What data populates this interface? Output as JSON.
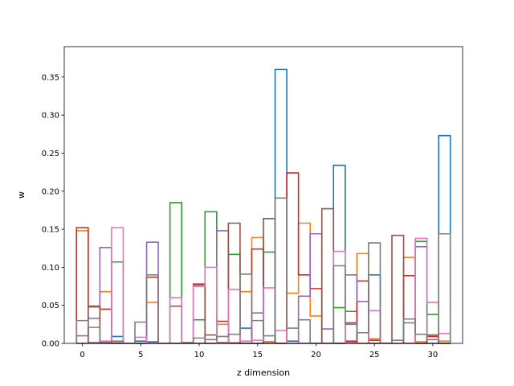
{
  "chart_data": {
    "type": "step-histogram",
    "title": "",
    "xlabel": "z dimension",
    "ylabel": "w",
    "xlim": [
      -1.55,
      32.55
    ],
    "ylim": [
      0,
      0.39
    ],
    "xticks": [
      0,
      5,
      10,
      15,
      20,
      25,
      30
    ],
    "yticks": [
      0.0,
      0.05,
      0.1,
      0.15,
      0.2,
      0.25,
      0.3,
      0.35
    ],
    "bins": [
      -0.5,
      0.5,
      1.5,
      2.5,
      3.5,
      4.5,
      5.5,
      6.5,
      7.5,
      8.5,
      9.5,
      10.5,
      11.5,
      12.5,
      13.5,
      14.5,
      15.5,
      16.5,
      17.5,
      18.5,
      19.5,
      20.5,
      21.5,
      22.5,
      23.5,
      24.5,
      25.5,
      26.5,
      27.5,
      28.5,
      29.5,
      30.5,
      31.5
    ],
    "grid": false,
    "legend": false,
    "series": [
      {
        "color": "#1f77b4",
        "values": [
          0.0,
          0.001,
          0.002,
          0.009,
          0.0,
          0.003,
          0.002,
          0.0,
          0.0,
          0.001,
          0.0,
          0.0,
          0.001,
          0.0,
          0.02,
          0.0,
          0.002,
          0.36,
          0.003,
          0.0,
          0.0,
          0.0,
          0.234,
          0.001,
          0.0,
          0.09,
          0.0,
          0.0,
          0.0,
          0.0,
          0.0,
          0.273
        ]
      },
      {
        "color": "#ff7f0e",
        "values": [
          0.148,
          0.0,
          0.068,
          0.001,
          0.0,
          0.0,
          0.054,
          0.0,
          0.0,
          0.0,
          0.0,
          0.0,
          0.025,
          0.001,
          0.068,
          0.139,
          0.002,
          0.0,
          0.066,
          0.158,
          0.036,
          0.0,
          0.0,
          0.0,
          0.118,
          0.006,
          0.0,
          0.0,
          0.113,
          0.002,
          0.0,
          0.003
        ]
      },
      {
        "color": "#2ca02c",
        "values": [
          0.0,
          0.0,
          0.0,
          0.107,
          0.0,
          0.0,
          0.0,
          0.0,
          0.185,
          0.0,
          0.031,
          0.173,
          0.0,
          0.117,
          0.0,
          0.0,
          0.12,
          0.0,
          0.0,
          0.0,
          0.0,
          0.0,
          0.047,
          0.042,
          0.0,
          0.0,
          0.0,
          0.0,
          0.0,
          0.134,
          0.038,
          0.0
        ]
      },
      {
        "color": "#d62728",
        "values": [
          0.152,
          0.048,
          0.045,
          0.0,
          0.0,
          0.0,
          0.087,
          0.0,
          0.0,
          0.0,
          0.078,
          0.0,
          0.029,
          0.0,
          0.0,
          0.124,
          0.0,
          0.0,
          0.224,
          0.09,
          0.072,
          0.0,
          0.0,
          0.003,
          0.082,
          0.004,
          0.0,
          0.0,
          0.089,
          0.0,
          0.009,
          0.0
        ]
      },
      {
        "color": "#9467bd",
        "values": [
          0.01,
          0.033,
          0.126,
          0.0,
          0.0,
          0.0,
          0.133,
          0.0,
          0.0,
          0.0,
          0.0,
          0.0,
          0.148,
          0.0,
          0.0,
          0.04,
          0.0,
          0.0,
          0.0,
          0.062,
          0.144,
          0.019,
          0.0,
          0.09,
          0.055,
          0.0,
          0.0,
          0.0,
          0.027,
          0.127,
          0.0,
          0.0
        ]
      },
      {
        "color": "#8c564b",
        "values": [
          0.0,
          0.049,
          0.0,
          0.0,
          0.0,
          0.0,
          0.0,
          0.0,
          0.049,
          0.0,
          0.076,
          0.011,
          0.0,
          0.158,
          0.0,
          0.0,
          0.164,
          0.0,
          0.0,
          0.0,
          0.0,
          0.177,
          0.0,
          0.027,
          0.0,
          0.0,
          0.0,
          0.142,
          0.0,
          0.0,
          0.011,
          0.0
        ]
      },
      {
        "color": "#e377c2",
        "values": [
          0.0,
          0.0,
          0.003,
          0.152,
          0.0,
          0.008,
          0.0,
          0.0,
          0.06,
          0.0,
          0.075,
          0.1,
          0.0,
          0.071,
          0.003,
          0.004,
          0.073,
          0.017,
          0.0,
          0.0,
          0.0,
          0.0,
          0.121,
          0.0,
          0.0,
          0.043,
          0.0,
          0.0,
          0.0,
          0.138,
          0.054,
          0.013
        ]
      },
      {
        "color": "#7f7f7f",
        "values": [
          0.03,
          0.021,
          0.001,
          0.003,
          0.0,
          0.028,
          0.09,
          0.0,
          0.0,
          0.0,
          0.007,
          0.005,
          0.009,
          0.012,
          0.091,
          0.03,
          0.01,
          0.191,
          0.02,
          0.031,
          0.0,
          0.0,
          0.102,
          0.025,
          0.014,
          0.132,
          0.0,
          0.004,
          0.032,
          0.012,
          0.005,
          0.144
        ]
      }
    ]
  }
}
